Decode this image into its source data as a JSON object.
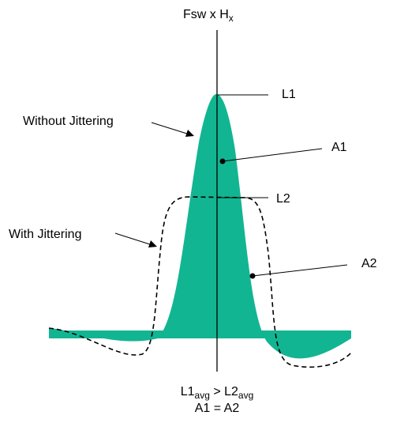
{
  "labels": {
    "top_axis_main": "Fsw x H",
    "top_axis_sub": "x",
    "l1": "L1",
    "l2": "L2",
    "a1": "A1",
    "a2": "A2",
    "without_jittering": "Without Jittering",
    "with_jittering": "With Jittering"
  },
  "equations": {
    "line1_left": "L1",
    "line1_left_sub": "avg",
    "line1_op": " > ",
    "line1_right": "L2",
    "line1_right_sub": "avg",
    "line2": "A1 = A2"
  },
  "colors": {
    "fill": "#12b592",
    "stroke": "#000000",
    "background": "#ffffff"
  }
}
